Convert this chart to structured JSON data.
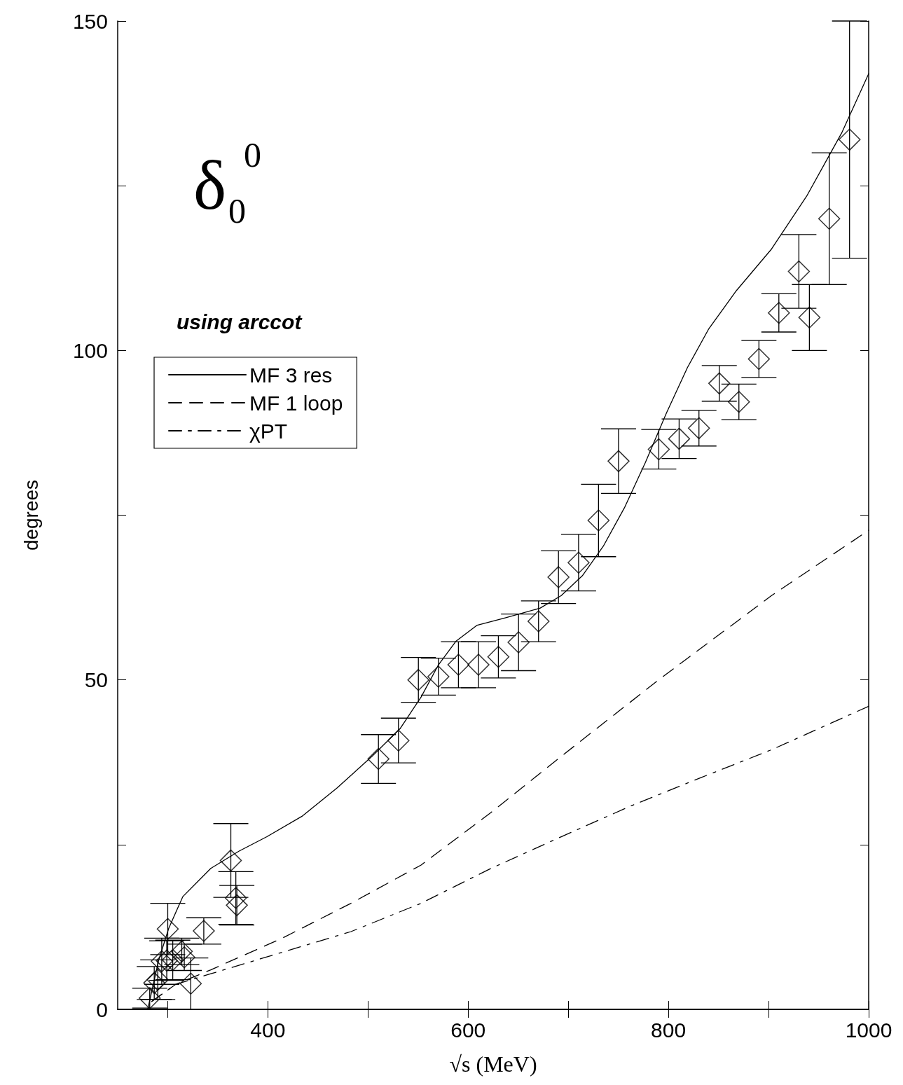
{
  "chart_data": {
    "type": "scatter",
    "xlabel": "√s (MeV)",
    "ylabel": "degrees",
    "annotations": [
      "δ$_{0}$$^{0}$",
      "using arccot"
    ],
    "xlim": [
      250,
      1000
    ],
    "xticks": [
      {
        "value": 300,
        "label": null
      },
      400,
      {
        "value": 500,
        "label": null
      },
      600,
      {
        "value": 700,
        "label": null
      },
      800,
      {
        "value": 900,
        "label": null
      },
      1000
    ],
    "ylim": [
      0,
      150
    ],
    "yticks": [
      0,
      {
        "value": 25,
        "label": null
      },
      50,
      {
        "value": 75,
        "label": null
      },
      100,
      {
        "value": 125,
        "label": null
      },
      150
    ],
    "grid": false,
    "legend": "top left",
    "series": [
      {
        "color": "#000000",
        "marker": "diamond",
        "x": [
          282,
          286.5,
          290,
          294,
          299,
          300,
          305,
          314,
          316.5,
          323,
          336,
          363,
          368,
          369,
          510.4,
          530.4,
          550.3,
          570.3,
          590.3,
          610.3,
          630.2,
          650.3,
          670.3,
          690.2,
          710.3,
          730.2,
          750.2,
          790.4,
          810.7,
          830.5,
          850.8,
          870.4,
          890.4,
          910.3,
          930.3,
          940.8,
          960.6,
          980.9
        ],
        "values": [
          1.7,
          4.0,
          4.5,
          7.3,
          7.4,
          12.2,
          7.5,
          8.8,
          7.9,
          3.9,
          11.9,
          22.6,
          16.9,
          15.8,
          38.0,
          40.8,
          50.0,
          50.5,
          52.3,
          52.3,
          53.5,
          55.7,
          58.9,
          65.6,
          67.8,
          74.2,
          83.2,
          85.0,
          86.6,
          88.2,
          95.0,
          92.2,
          98.7,
          105.7,
          112.0,
          105.0,
          120.0,
          132.0
        ],
        "errors": [
          1.5,
          2.5,
          3,
          3.5,
          3,
          3.9,
          3,
          2,
          2,
          3.9,
          2,
          5.6,
          4,
          3,
          3.7,
          3.4,
          3.4,
          2.8,
          3.5,
          3.5,
          3.2,
          4.3,
          3.1,
          4,
          4.3,
          5.5,
          4.9,
          3,
          3,
          2.7,
          2.7,
          2.7,
          2.8,
          2.9,
          5.6,
          5,
          10,
          18
        ]
      },
      {
        "type": "line",
        "name": "MF 3 res",
        "color": "#000000",
        "line_style": "solid",
        "x": [
          280,
          291,
          301,
          315,
          343,
          371,
          399,
          434,
          469,
          504,
          532,
          553,
          570,
          588,
          609,
          637,
          672,
          693,
          714,
          735,
          756,
          777,
          798,
          819,
          840,
          868,
          903,
          938,
          973,
          1000
        ],
        "values": [
          0,
          7.5,
          12.3,
          17.1,
          21.4,
          24,
          26.2,
          29.3,
          33.6,
          38.4,
          42.6,
          47.4,
          52.2,
          55.9,
          58.3,
          59.4,
          60.9,
          62.8,
          65.8,
          70.3,
          76.1,
          83.0,
          90.5,
          97.4,
          103.2,
          109.1,
          115.4,
          123.4,
          133,
          142
        ]
      },
      {
        "type": "line",
        "name": "MF 1 loop",
        "color": "#000000",
        "line_style": "dashed",
        "x": [
          284,
          308,
          343,
          413,
          483,
          553,
          623,
          693,
          791,
          903,
          1000
        ],
        "values": [
          1.2,
          3.8,
          6.0,
          10.7,
          16.1,
          21.9,
          29.9,
          38.4,
          50.1,
          62.8,
          72.7
        ]
      },
      {
        "type": "line",
        "name": "χPT",
        "color": "#000000",
        "line_style": "dashdot",
        "x": [
          284,
          308,
          343,
          413,
          483,
          553,
          623,
          693,
          763,
          833,
          903,
          1000
        ],
        "values": [
          1.2,
          3.8,
          5.4,
          8.6,
          11.8,
          16.1,
          21.4,
          26.2,
          30.9,
          35.2,
          39.4,
          46.0
        ]
      }
    ]
  }
}
